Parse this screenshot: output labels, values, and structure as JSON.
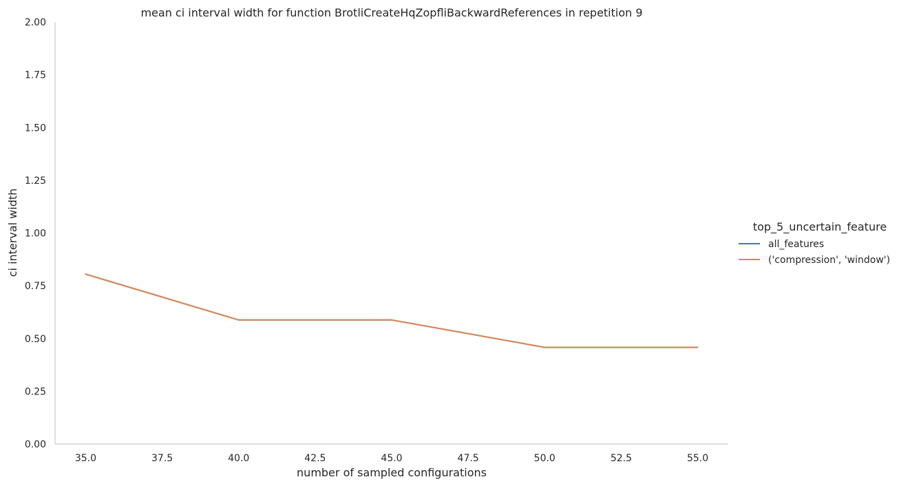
{
  "chart_data": {
    "type": "line",
    "title": "mean ci interval width for function BrotliCreateHqZopfliBackwardReferences in repetition 9",
    "xlabel": "number of sampled configurations",
    "ylabel": "ci interval width",
    "xlim": [
      34.0,
      56.0
    ],
    "ylim": [
      0.0,
      2.0
    ],
    "xticks": [
      "35.0",
      "37.5",
      "40.0",
      "42.5",
      "45.0",
      "47.5",
      "50.0",
      "52.5",
      "55.0"
    ],
    "yticks": [
      "0.00",
      "0.25",
      "0.50",
      "0.75",
      "1.00",
      "1.25",
      "1.50",
      "1.75",
      "2.00"
    ],
    "grid": false,
    "legend": {
      "title": "top_5_uncertain_feature",
      "placement": "right"
    },
    "series": [
      {
        "name": "all_features",
        "color": "#4c72b0",
        "x": [
          35,
          40,
          45,
          50,
          55
        ],
        "y": [
          0.805,
          0.588,
          0.588,
          0.458,
          0.458
        ]
      },
      {
        "name": "('compression', 'window')",
        "color": "#dd8452",
        "x": [
          35,
          40,
          45,
          50,
          55
        ],
        "y": [
          0.805,
          0.588,
          0.588,
          0.458,
          0.458
        ]
      }
    ]
  }
}
